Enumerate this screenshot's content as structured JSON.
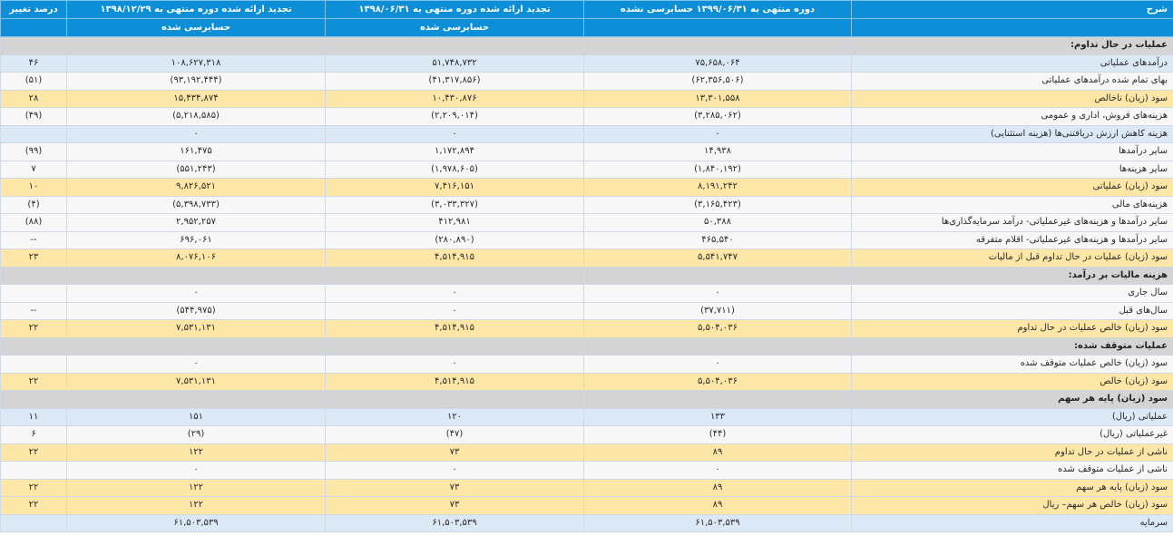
{
  "colors": {
    "header_bg": "#0d8fd8",
    "section_bg": "#d4d4d4",
    "blue_row": "#dbe8f6",
    "white_row": "#f7f7f7",
    "yellow_row": "#fde6a6",
    "negative_text": "#e01010"
  },
  "header": {
    "desc": "شرح",
    "period1": "دوره منتهی به ۱۳۹۹/۰۶/۳۱ حسابرسی نشده",
    "period2": "تجدید ارائه شده دوره منتهی به ۱۳۹۸/۰۶/۳۱",
    "period3": "تجدید ارائه شده دوره منتهی به ۱۳۹۸/۱۲/۲۹",
    "change": "درصد تغییر",
    "period1_sub": "",
    "period2_sub": "حسابرسی شده",
    "period3_sub": "حسابرسی شده",
    "change_sub": ""
  },
  "rows": [
    {
      "type": "section",
      "desc": "عملیات در حال تداوم:",
      "p1": "",
      "p2": "",
      "p3": "",
      "chg": ""
    },
    {
      "type": "blue",
      "desc": "درآمدهای عملیاتی",
      "p1": "۷۵,۶۵۸,۰۶۴",
      "p2": "۵۱,۷۴۸,۷۳۲",
      "p3": "۱۰۸,۶۲۷,۳۱۸",
      "chg": "۴۶"
    },
    {
      "type": "white",
      "desc": "بهای تمام شده درآمدهای عملیاتی",
      "p1": "(۶۲,۳۵۶,۵۰۶)",
      "p2": "(۴۱,۳۱۷,۸۵۶)",
      "p3": "(۹۳,۱۹۲,۴۴۴)",
      "chg": "(۵۱)"
    },
    {
      "type": "yellow",
      "desc": "سود (زیان) ناخالص",
      "p1": "۱۳,۳۰۱,۵۵۸",
      "p2": "۱۰,۴۳۰,۸۷۶",
      "p3": "۱۵,۴۳۴,۸۷۴",
      "chg": "۲۸"
    },
    {
      "type": "white",
      "desc": "هزینه‌های فروش، اداری و عمومی",
      "p1": "(۳,۲۸۵,۰۶۲)",
      "p2": "(۲,۲۰۹,۰۱۴)",
      "p3": "(۵,۲۱۸,۵۸۵)",
      "chg": "(۴۹)"
    },
    {
      "type": "blue",
      "desc": "هزینه کاهش ارزش دریافتنی‌ها (هزینه استثنایی)",
      "p1": "۰",
      "p2": "۰",
      "p3": "۰",
      "chg": ""
    },
    {
      "type": "white",
      "desc": "سایر درآمدها",
      "p1": "۱۴,۹۳۸",
      "p2": "۱,۱۷۲,۸۹۴",
      "p3": "۱۶۱,۴۷۵",
      "chg": "(۹۹)"
    },
    {
      "type": "white",
      "desc": "سایر هزینه‌ها",
      "p1": "(۱,۸۴۰,۱۹۲)",
      "p2": "(۱,۹۷۸,۶۰۵)",
      "p3": "(۵۵۱,۲۴۳)",
      "chg": "۷"
    },
    {
      "type": "yellow",
      "desc": "سود (زیان) عملیاتی",
      "p1": "۸,۱۹۱,۲۴۲",
      "p2": "۷,۴۱۶,۱۵۱",
      "p3": "۹,۸۲۶,۵۲۱",
      "chg": "۱۰"
    },
    {
      "type": "white",
      "desc": "هزینه‌های مالی",
      "p1": "(۳,۱۶۵,۴۲۳)",
      "p2": "(۳,۰۳۳,۳۲۷)",
      "p3": "(۵,۳۹۸,۷۳۳)",
      "chg": "(۴)"
    },
    {
      "type": "white",
      "desc": "سایر درآمدها و هزینه‌های غیرعملیاتی- درآمد سرمایه‌گذاری‌ها",
      "p1": "۵۰,۳۸۸",
      "p2": "۴۱۲,۹۸۱",
      "p3": "۲,۹۵۲,۲۵۷",
      "chg": "(۸۸)"
    },
    {
      "type": "white",
      "desc": "سایر درآمدها و هزینه‌های غیرعملیاتی- اقلام متفرقه",
      "p1": "۴۶۵,۵۴۰",
      "p2": "(۲۸۰,۸۹۰)",
      "p3": "۶۹۶,۰۶۱",
      "chg": "--"
    },
    {
      "type": "yellow",
      "desc": "سود (زیان) عملیات در حال تداوم قبل از مالیات",
      "p1": "۵,۵۴۱,۷۴۷",
      "p2": "۴,۵۱۴,۹۱۵",
      "p3": "۸,۰۷۶,۱۰۶",
      "chg": "۲۳"
    },
    {
      "type": "section",
      "desc": "هزینه مالیات بر درآمد:",
      "p1": "",
      "p2": "",
      "p3": "",
      "chg": ""
    },
    {
      "type": "white",
      "desc": "سال جاری",
      "p1": "۰",
      "p2": "۰",
      "p3": "۰",
      "chg": ""
    },
    {
      "type": "white",
      "desc": "سال‌های قبل",
      "p1": "(۳۷,۷۱۱)",
      "p2": "۰",
      "p3": "(۵۴۴,۹۷۵)",
      "chg": "--"
    },
    {
      "type": "yellow",
      "desc": "سود (زیان) خالص عملیات در حال تداوم",
      "p1": "۵,۵۰۴,۰۳۶",
      "p2": "۴,۵۱۴,۹۱۵",
      "p3": "۷,۵۳۱,۱۳۱",
      "chg": "۲۲"
    },
    {
      "type": "section",
      "desc": "عملیات متوقف شده:",
      "p1": "",
      "p2": "",
      "p3": "",
      "chg": ""
    },
    {
      "type": "white",
      "desc": "سود (زیان) خالص عملیات متوقف شده",
      "p1": "۰",
      "p2": "۰",
      "p3": "۰",
      "chg": ""
    },
    {
      "type": "yellow",
      "desc": "سود (زیان) خالص",
      "p1": "۵,۵۰۴,۰۳۶",
      "p2": "۴,۵۱۴,۹۱۵",
      "p3": "۷,۵۳۱,۱۳۱",
      "chg": "۲۲"
    },
    {
      "type": "section",
      "desc": "سود (زیان) پایه هر سهم",
      "p1": "",
      "p2": "",
      "p3": "",
      "chg": ""
    },
    {
      "type": "blue",
      "desc": "عملیاتی (ریال)",
      "p1": "۱۳۳",
      "p2": "۱۲۰",
      "p3": "۱۵۱",
      "chg": "۱۱"
    },
    {
      "type": "white",
      "desc": "غیرعملیاتی (ریال)",
      "p1": "(۴۴)",
      "p2": "(۴۷)",
      "p3": "(۲۹)",
      "chg": "۶"
    },
    {
      "type": "yellow",
      "desc": "ناشی از عملیات در حال تداوم",
      "p1": "۸۹",
      "p2": "۷۳",
      "p3": "۱۲۲",
      "chg": "۲۲"
    },
    {
      "type": "white",
      "desc": "ناشی از عملیات متوقف شده",
      "p1": "۰",
      "p2": "۰",
      "p3": "۰",
      "chg": ""
    },
    {
      "type": "yellow",
      "desc": "سود (زیان) پایه هر سهم",
      "p1": "۸۹",
      "p2": "۷۳",
      "p3": "۱۲۲",
      "chg": "۲۲"
    },
    {
      "type": "yellow",
      "desc": "سود (زیان) خالص هر سهم– ریال",
      "p1": "۸۹",
      "p2": "۷۳",
      "p3": "۱۲۲",
      "chg": "۲۲"
    },
    {
      "type": "blue",
      "desc": "سرمایه",
      "p1": "۶۱,۵۰۳,۵۳۹",
      "p2": "۶۱,۵۰۳,۵۳۹",
      "p3": "۶۱,۵۰۳,۵۳۹",
      "chg": ""
    }
  ]
}
